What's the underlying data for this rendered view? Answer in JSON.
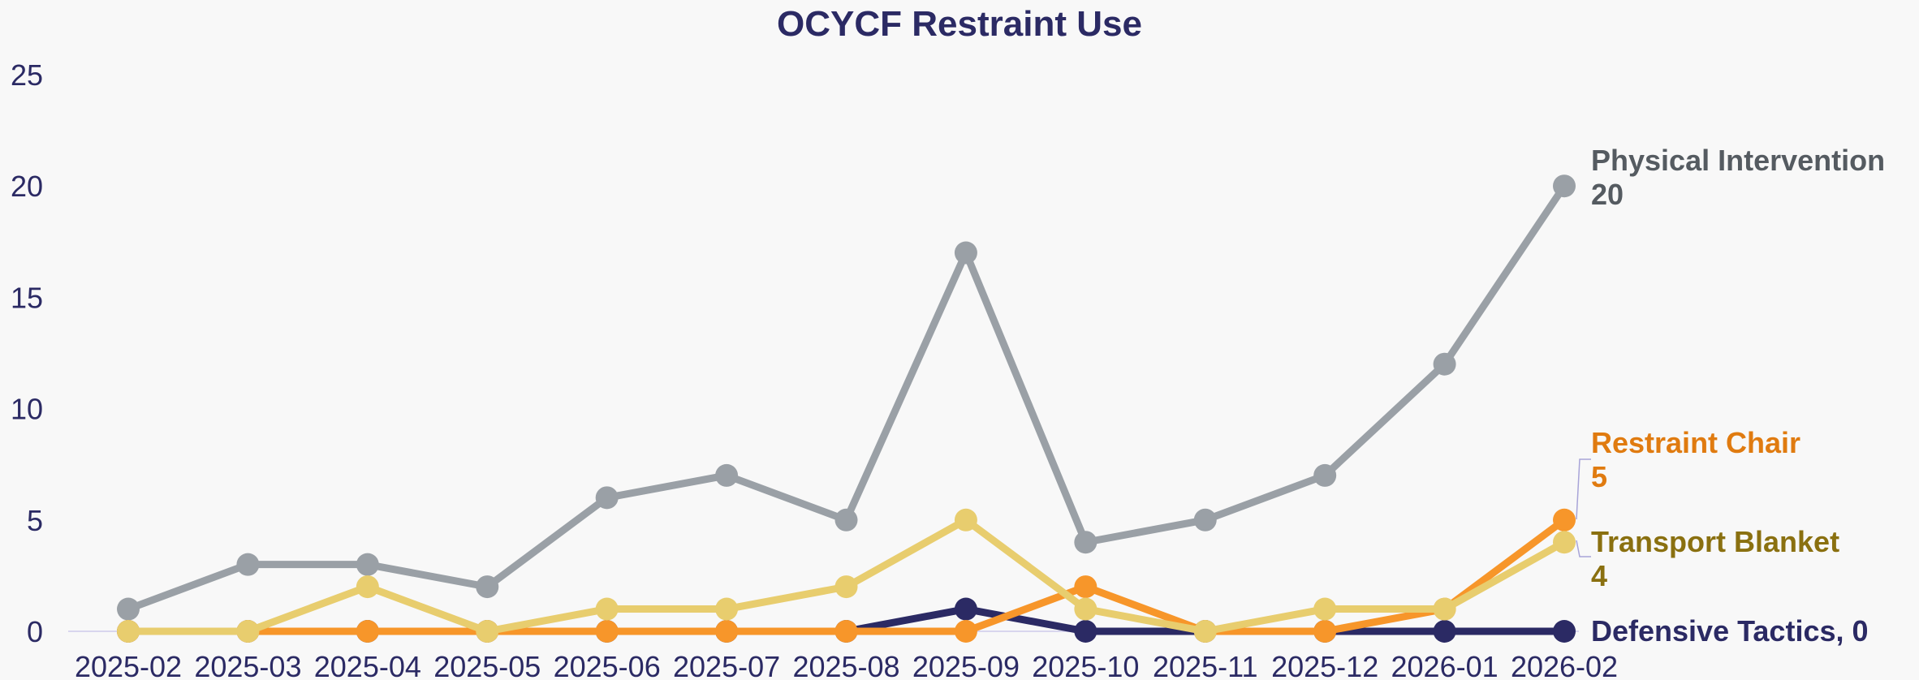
{
  "chart_data": {
    "type": "line",
    "title": "OCYCF  Restraint Use",
    "categories": [
      "2025-02",
      "2025-03",
      "2025-04",
      "2025-05",
      "2025-06",
      "2025-07",
      "2025-08",
      "2025-09",
      "2025-10",
      "2025-11",
      "2025-12",
      "2026-01",
      "2026-02"
    ],
    "ylim": [
      0,
      25
    ],
    "yticks": [
      0,
      5,
      10,
      15,
      20,
      25
    ],
    "series": [
      {
        "label": [
          "Physical Intervention",
          "20"
        ],
        "color": "#9aa0a6",
        "label_color": "#555b61",
        "values": [
          1,
          3,
          3,
          2,
          6,
          7,
          5,
          17,
          4,
          5,
          7,
          12,
          20
        ]
      },
      {
        "label": [
          "Defensive Tactics, 0"
        ],
        "color": "#2b2a64",
        "label_color": "#2b2a64",
        "values": [
          0,
          0,
          0,
          0,
          0,
          0,
          0,
          1,
          0,
          0,
          0,
          0,
          0
        ]
      },
      {
        "label": [
          "Restraint Chair",
          "5"
        ],
        "color": "#f7962a",
        "label_color": "#e07b10",
        "values": [
          0,
          0,
          0,
          0,
          0,
          0,
          0,
          0,
          2,
          0,
          0,
          1,
          5
        ]
      },
      {
        "label": [
          "Transport Blanket",
          "4"
        ],
        "color": "#e8cd6e",
        "label_color": "#8a7010",
        "values": [
          0,
          0,
          2,
          0,
          1,
          1,
          2,
          5,
          1,
          0,
          1,
          1,
          4
        ]
      }
    ]
  }
}
